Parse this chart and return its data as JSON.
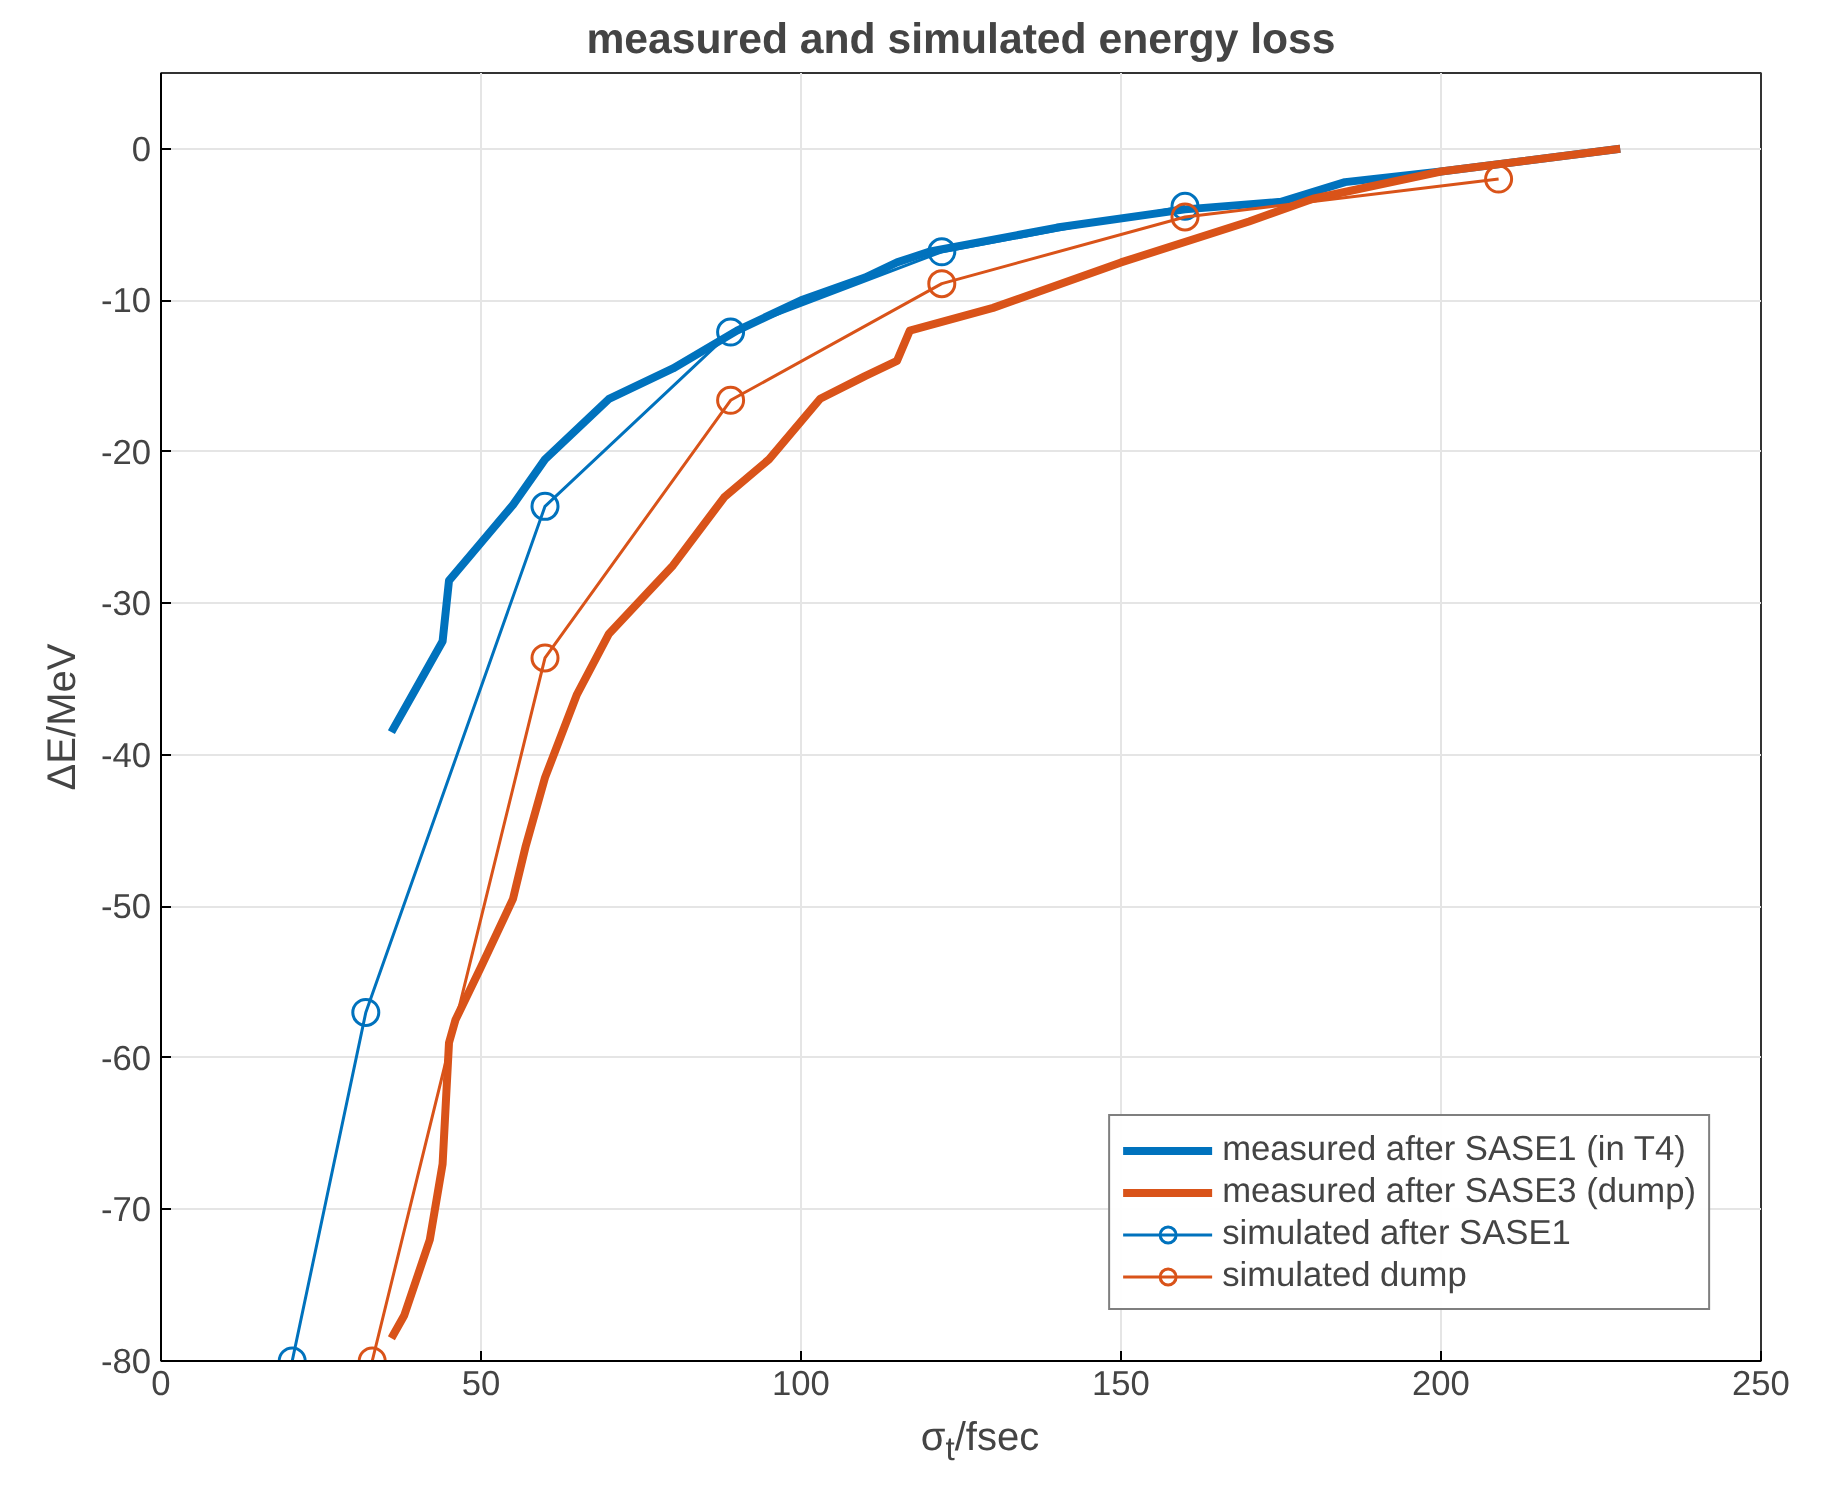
{
  "chart_data": {
    "type": "line",
    "title": "measured and simulated energy loss",
    "xlabel": "σ$_{t}$/fsec",
    "ylabel": "ΔE/MeV",
    "xlim": [
      0,
      250
    ],
    "ylim": [
      -80,
      5
    ],
    "xticks": [
      0,
      50,
      100,
      150,
      200,
      250
    ],
    "yticks": [
      -80,
      -70,
      -60,
      -50,
      -40,
      -30,
      -20,
      -10,
      0
    ],
    "grid": true,
    "legend": "bottom right",
    "series": [
      {
        "name": "measured after SASE1 (in T4)",
        "color": "#0072bd",
        "marker": "none",
        "x": [
          36,
          40,
          44,
          45,
          50,
          55,
          60,
          65,
          70,
          80,
          90,
          100,
          110,
          115,
          120,
          140,
          160,
          175,
          185,
          200,
          228
        ],
        "values": [
          -38.5,
          -35.5,
          -32.5,
          -28.5,
          -26,
          -23.5,
          -20.5,
          -18.5,
          -16.5,
          -14.5,
          -12,
          -10,
          -8.5,
          -7.5,
          -6.8,
          -5.2,
          -4,
          -3.5,
          -2.2,
          -1.5,
          0
        ]
      },
      {
        "name": "measured after SASE3 (dump)",
        "color": "#d95319",
        "marker": "none",
        "x": [
          36,
          38,
          42,
          44,
          45,
          46,
          50,
          55,
          57,
          60,
          65,
          70,
          80,
          88,
          95,
          103,
          110,
          115,
          117,
          130,
          150,
          170,
          180,
          200,
          228
        ],
        "values": [
          -78.5,
          -77,
          -72,
          -67,
          -59,
          -57.5,
          -54,
          -49.5,
          -46,
          -41.5,
          -36,
          -32,
          -27.5,
          -23,
          -20.5,
          -16.5,
          -15,
          -14,
          -12,
          -10.5,
          -7.5,
          -4.8,
          -3.3,
          -1.5,
          0
        ]
      },
      {
        "name": "simulated after SASE1",
        "color": "#0072bd",
        "marker": "circle",
        "x": [
          20.5,
          32,
          60,
          89,
          122,
          160
        ],
        "values": [
          -80,
          -57,
          -23.6,
          -12.1,
          -6.8,
          -3.8
        ]
      },
      {
        "name": "simulated dump",
        "color": "#d95319",
        "marker": "circle",
        "x": [
          33,
          60,
          89,
          122,
          160,
          209
        ],
        "values": [
          -80,
          -33.6,
          -16.6,
          -8.9,
          -4.5,
          -2
        ]
      }
    ]
  }
}
